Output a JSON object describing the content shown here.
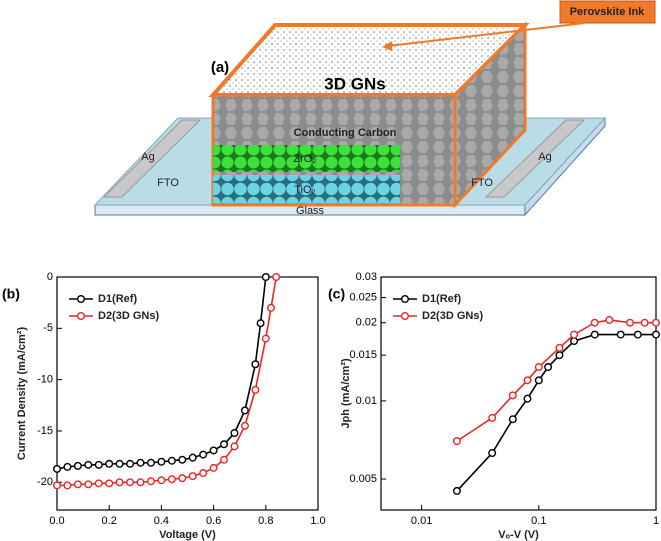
{
  "diagram": {
    "panel_label": "(a)",
    "ink_label": "Perovskite Ink",
    "top_label": "3D GNs",
    "carbon_label": "Conducting Carbon",
    "zro2_label": "ZrO₂",
    "tio2_label": "TiO₂",
    "ag_left": "Ag",
    "ag_right": "Ag",
    "fto_left": "FTO",
    "fto_right": "FTO",
    "glass_label": "Glass"
  },
  "chart_data": [
    {
      "type": "line",
      "panel_label": "(b)",
      "x_label": "Voltage (V)",
      "y_label": "Current Density (mA/cm²)",
      "log": false,
      "xlim": [
        0,
        1
      ],
      "xticks": [
        {
          "value": 0,
          "label": "0.0"
        },
        {
          "value": 0.2,
          "label": "0.2"
        },
        {
          "value": 0.4,
          "label": "0.4"
        },
        {
          "value": 0.6,
          "label": "0.6"
        },
        {
          "value": 0.8,
          "label": "0.8"
        },
        {
          "value": 1,
          "label": "1.0"
        }
      ],
      "ylim": [
        -22.7,
        0
      ],
      "yticks": [
        0,
        -5,
        -10,
        -15,
        -20
      ],
      "legend": "top-left",
      "series": [
        {
          "name": "D1(Ref)",
          "color": "#000000",
          "x": [
            0,
            0.04,
            0.08,
            0.12,
            0.16,
            0.2,
            0.24,
            0.28,
            0.32,
            0.36,
            0.4,
            0.44,
            0.48,
            0.52,
            0.56,
            0.6,
            0.64,
            0.68,
            0.72,
            0.76,
            0.78,
            0.8
          ],
          "values": [
            -18.7,
            -18.5,
            -18.4,
            -18.3,
            -18.3,
            -18.2,
            -18.2,
            -18.2,
            -18.1,
            -18.1,
            -18.0,
            -17.9,
            -17.8,
            -17.6,
            -17.3,
            -16.9,
            -16.3,
            -15.2,
            -13.0,
            -8.5,
            -4.5,
            0
          ]
        },
        {
          "name": "D2(3D GNs)",
          "color": "#e8262a",
          "x": [
            0,
            0.04,
            0.08,
            0.12,
            0.16,
            0.2,
            0.24,
            0.28,
            0.32,
            0.36,
            0.4,
            0.44,
            0.48,
            0.52,
            0.56,
            0.6,
            0.64,
            0.68,
            0.72,
            0.76,
            0.8,
            0.82,
            0.84
          ],
          "values": [
            -20.3,
            -20.3,
            -20.2,
            -20.2,
            -20.1,
            -20.1,
            -20.0,
            -20.0,
            -20.0,
            -19.9,
            -19.8,
            -19.7,
            -19.6,
            -19.4,
            -19.1,
            -18.6,
            -17.8,
            -16.5,
            -14.5,
            -11.0,
            -6.0,
            -3.0,
            0
          ]
        }
      ]
    },
    {
      "type": "line",
      "panel_label": "(c)",
      "x_label": "Vₒ-V (V)",
      "y_label": "Jph (mA/cm²)",
      "log": true,
      "xlim": [
        0.0045,
        1
      ],
      "xticks": [
        0.01,
        0.1,
        1
      ],
      "ylim": [
        0.0038,
        0.03
      ],
      "yticks": [
        0.005,
        0.01,
        0.015,
        0.02,
        0.025,
        0.03
      ],
      "legend": "top-left",
      "series": [
        {
          "name": "D1(Ref)",
          "color": "#000000",
          "x": [
            0.02,
            0.04,
            0.06,
            0.08,
            0.1,
            0.12,
            0.15,
            0.2,
            0.3,
            0.5,
            0.7,
            1
          ],
          "values": [
            0.0045,
            0.0063,
            0.0085,
            0.0102,
            0.012,
            0.0135,
            0.015,
            0.017,
            0.018,
            0.018,
            0.018,
            0.018
          ]
        },
        {
          "name": "D2(3D GNs)",
          "color": "#e8262a",
          "x": [
            0.02,
            0.04,
            0.06,
            0.08,
            0.1,
            0.15,
            0.2,
            0.3,
            0.4,
            0.6,
            0.8,
            1
          ],
          "values": [
            0.007,
            0.0086,
            0.0105,
            0.012,
            0.0135,
            0.016,
            0.018,
            0.02,
            0.0205,
            0.02,
            0.02,
            0.02
          ]
        }
      ]
    }
  ]
}
